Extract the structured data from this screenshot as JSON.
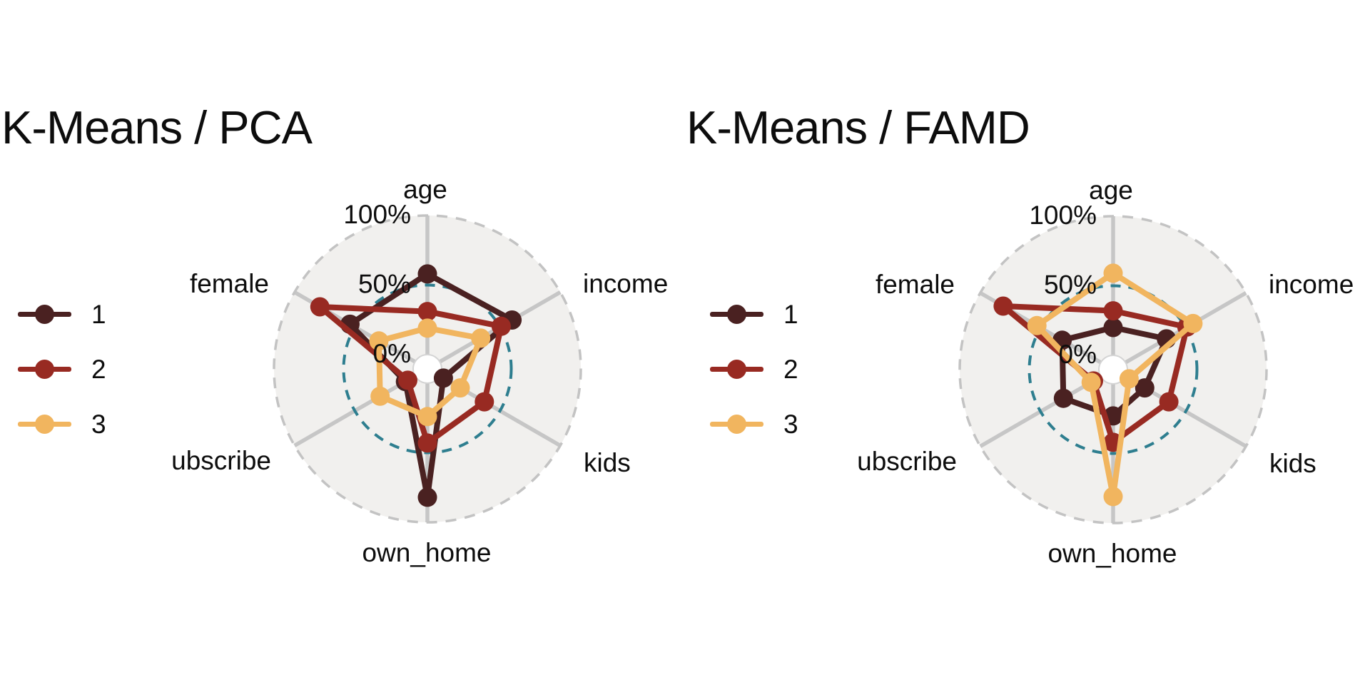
{
  "chart_data": [
    {
      "type": "radar",
      "title": "K-Means / PCA",
      "categories": [
        "age",
        "income",
        "kids",
        "own_home",
        "ubscribe",
        "female"
      ],
      "radial_ticks": [
        {
          "label": "100%",
          "value": 100
        },
        {
          "label": "50%",
          "value": 50
        },
        {
          "label": "0%",
          "value": 0
        }
      ],
      "rlim": [
        0,
        100
      ],
      "units": "%",
      "grid": {
        "mid_ring_value": 50,
        "outer_ring_value": 100
      },
      "series": [
        {
          "name": "1",
          "color": "#4a2121",
          "values": [
            58,
            60,
            3,
            82,
            8,
            54
          ]
        },
        {
          "name": "2",
          "color": "#982a22",
          "values": [
            31,
            51,
            37,
            43,
            6,
            79
          ]
        },
        {
          "name": "3",
          "color": "#f1b55f",
          "values": [
            19,
            34,
            17,
            24,
            29,
            30
          ]
        }
      ]
    },
    {
      "type": "radar",
      "title": "K-Means / FAMD",
      "categories": [
        "age",
        "income",
        "kids",
        "own_home",
        "ubscribe",
        "female"
      ],
      "radial_ticks": [
        {
          "label": "100%",
          "value": 100
        },
        {
          "label": "50%",
          "value": 50
        },
        {
          "label": "0%",
          "value": 0
        }
      ],
      "rlim": [
        0,
        100
      ],
      "units": "%",
      "grid": {
        "mid_ring_value": 50,
        "outer_ring_value": 100
      },
      "series": [
        {
          "name": "1",
          "color": "#4a2121",
          "values": [
            20,
            34,
            16,
            23,
            31,
            32
          ]
        },
        {
          "name": "2",
          "color": "#982a22",
          "values": [
            32,
            51,
            36,
            42,
            6,
            81
          ]
        },
        {
          "name": "3",
          "color": "#f1b55f",
          "values": [
            59,
            56,
            3,
            81,
            8,
            53
          ]
        }
      ]
    }
  ]
}
